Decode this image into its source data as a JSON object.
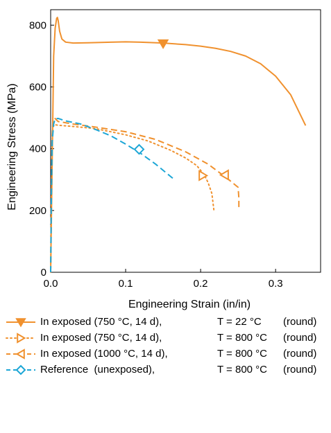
{
  "chart_data": {
    "type": "line",
    "xlabel": "Engineering Strain (in/in)",
    "ylabel": "Engineering Stress (MPa)",
    "xlim": [
      0,
      0.36
    ],
    "ylim": [
      0,
      850
    ],
    "xticks": [
      0.0,
      0.1,
      0.2,
      0.3
    ],
    "xtick_labels": [
      "0.0",
      "0.1",
      "0.2",
      "0.3"
    ],
    "yticks": [
      0,
      200,
      400,
      600,
      800
    ],
    "ytick_labels": [
      "0",
      "200",
      "400",
      "600",
      "800"
    ],
    "grid": false,
    "legend_position": "below",
    "series": [
      {
        "name": "In exposed (750 °C, 14 d),",
        "temperature": "T = 22 °C",
        "specimen": "(round)",
        "color": "#f0912e",
        "dash": "solid",
        "marker": "triangle-down",
        "marker_filled": true,
        "marker_at": [
          0.15,
          740
        ],
        "x": [
          0,
          0.002,
          0.004,
          0.006,
          0.008,
          0.009,
          0.01,
          0.012,
          0.015,
          0.02,
          0.03,
          0.05,
          0.08,
          0.1,
          0.12,
          0.15,
          0.18,
          0.2,
          0.22,
          0.24,
          0.26,
          0.28,
          0.3,
          0.32,
          0.34
        ],
        "y": [
          0,
          350,
          700,
          790,
          822,
          825,
          815,
          780,
          755,
          745,
          742,
          743,
          745,
          746,
          745,
          742,
          737,
          732,
          725,
          715,
          700,
          675,
          635,
          575,
          475
        ]
      },
      {
        "name": "In exposed (750 °C, 14 d),",
        "temperature": "T = 800 °C",
        "specimen": "(round)",
        "color": "#f0912e",
        "dash": "dotted",
        "marker": "triangle-right",
        "marker_filled": false,
        "marker_at": [
          0.203,
          313
        ],
        "x": [
          0,
          0.001,
          0.002,
          0.003,
          0.005,
          0.01,
          0.03,
          0.06,
          0.1,
          0.13,
          0.16,
          0.18,
          0.195,
          0.205,
          0.21,
          0.215,
          0.218
        ],
        "y": [
          0,
          250,
          420,
          470,
          478,
          476,
          472,
          465,
          445,
          425,
          395,
          370,
          345,
          315,
          290,
          255,
          195
        ]
      },
      {
        "name": "In exposed (1000 °C, 14 d),",
        "temperature": "T = 800 °C",
        "specimen": "(round)",
        "color": "#f0912e",
        "dash": "dashed",
        "marker": "triangle-left",
        "marker_filled": false,
        "marker_at": [
          0.232,
          315
        ],
        "x": [
          0,
          0.001,
          0.002,
          0.003,
          0.005,
          0.01,
          0.03,
          0.06,
          0.1,
          0.14,
          0.18,
          0.21,
          0.235,
          0.25,
          0.251,
          0.251
        ],
        "y": [
          0,
          260,
          440,
          490,
          500,
          488,
          480,
          470,
          455,
          430,
          390,
          350,
          305,
          275,
          240,
          200
        ]
      },
      {
        "name": "Reference  (unexposed),",
        "temperature": "T = 800 °C",
        "specimen": "(round)",
        "color": "#1ca6d6",
        "dash": "dashed",
        "marker": "diamond",
        "marker_filled": false,
        "marker_at": [
          0.118,
          398
        ],
        "x": [
          0,
          0.001,
          0.002,
          0.004,
          0.006,
          0.01,
          0.02,
          0.04,
          0.06,
          0.08,
          0.1,
          0.12,
          0.14,
          0.155,
          0.165
        ],
        "y": [
          0,
          250,
          420,
          480,
          497,
          498,
          490,
          480,
          462,
          442,
          415,
          385,
          350,
          320,
          300
        ]
      }
    ]
  }
}
